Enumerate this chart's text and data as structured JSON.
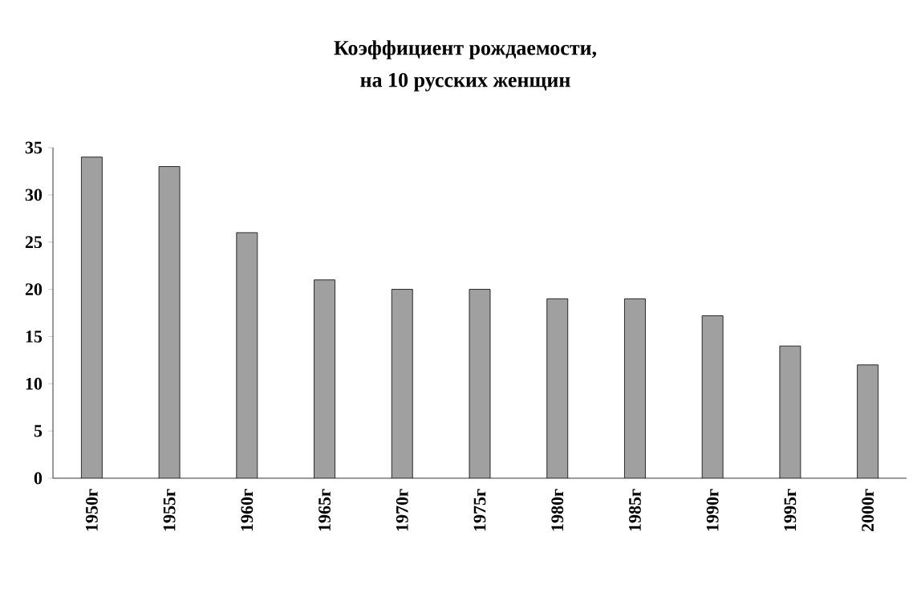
{
  "chart_data": {
    "type": "bar",
    "title": "Коэффициент рождаемости,\nна 10 русских женщин",
    "categories": [
      "1950г",
      "1955г",
      "1960г",
      "1965г",
      "1970г",
      "1975г",
      "1980г",
      "1985г",
      "1990г",
      "1995г",
      "2000г"
    ],
    "values": [
      34,
      33,
      26,
      21,
      20,
      20,
      19,
      19,
      17.2,
      14,
      12
    ],
    "color": "#a0a0a0",
    "ylim": [
      0,
      35
    ],
    "yticks": [
      0,
      5,
      10,
      15,
      20,
      25,
      30,
      35
    ]
  }
}
